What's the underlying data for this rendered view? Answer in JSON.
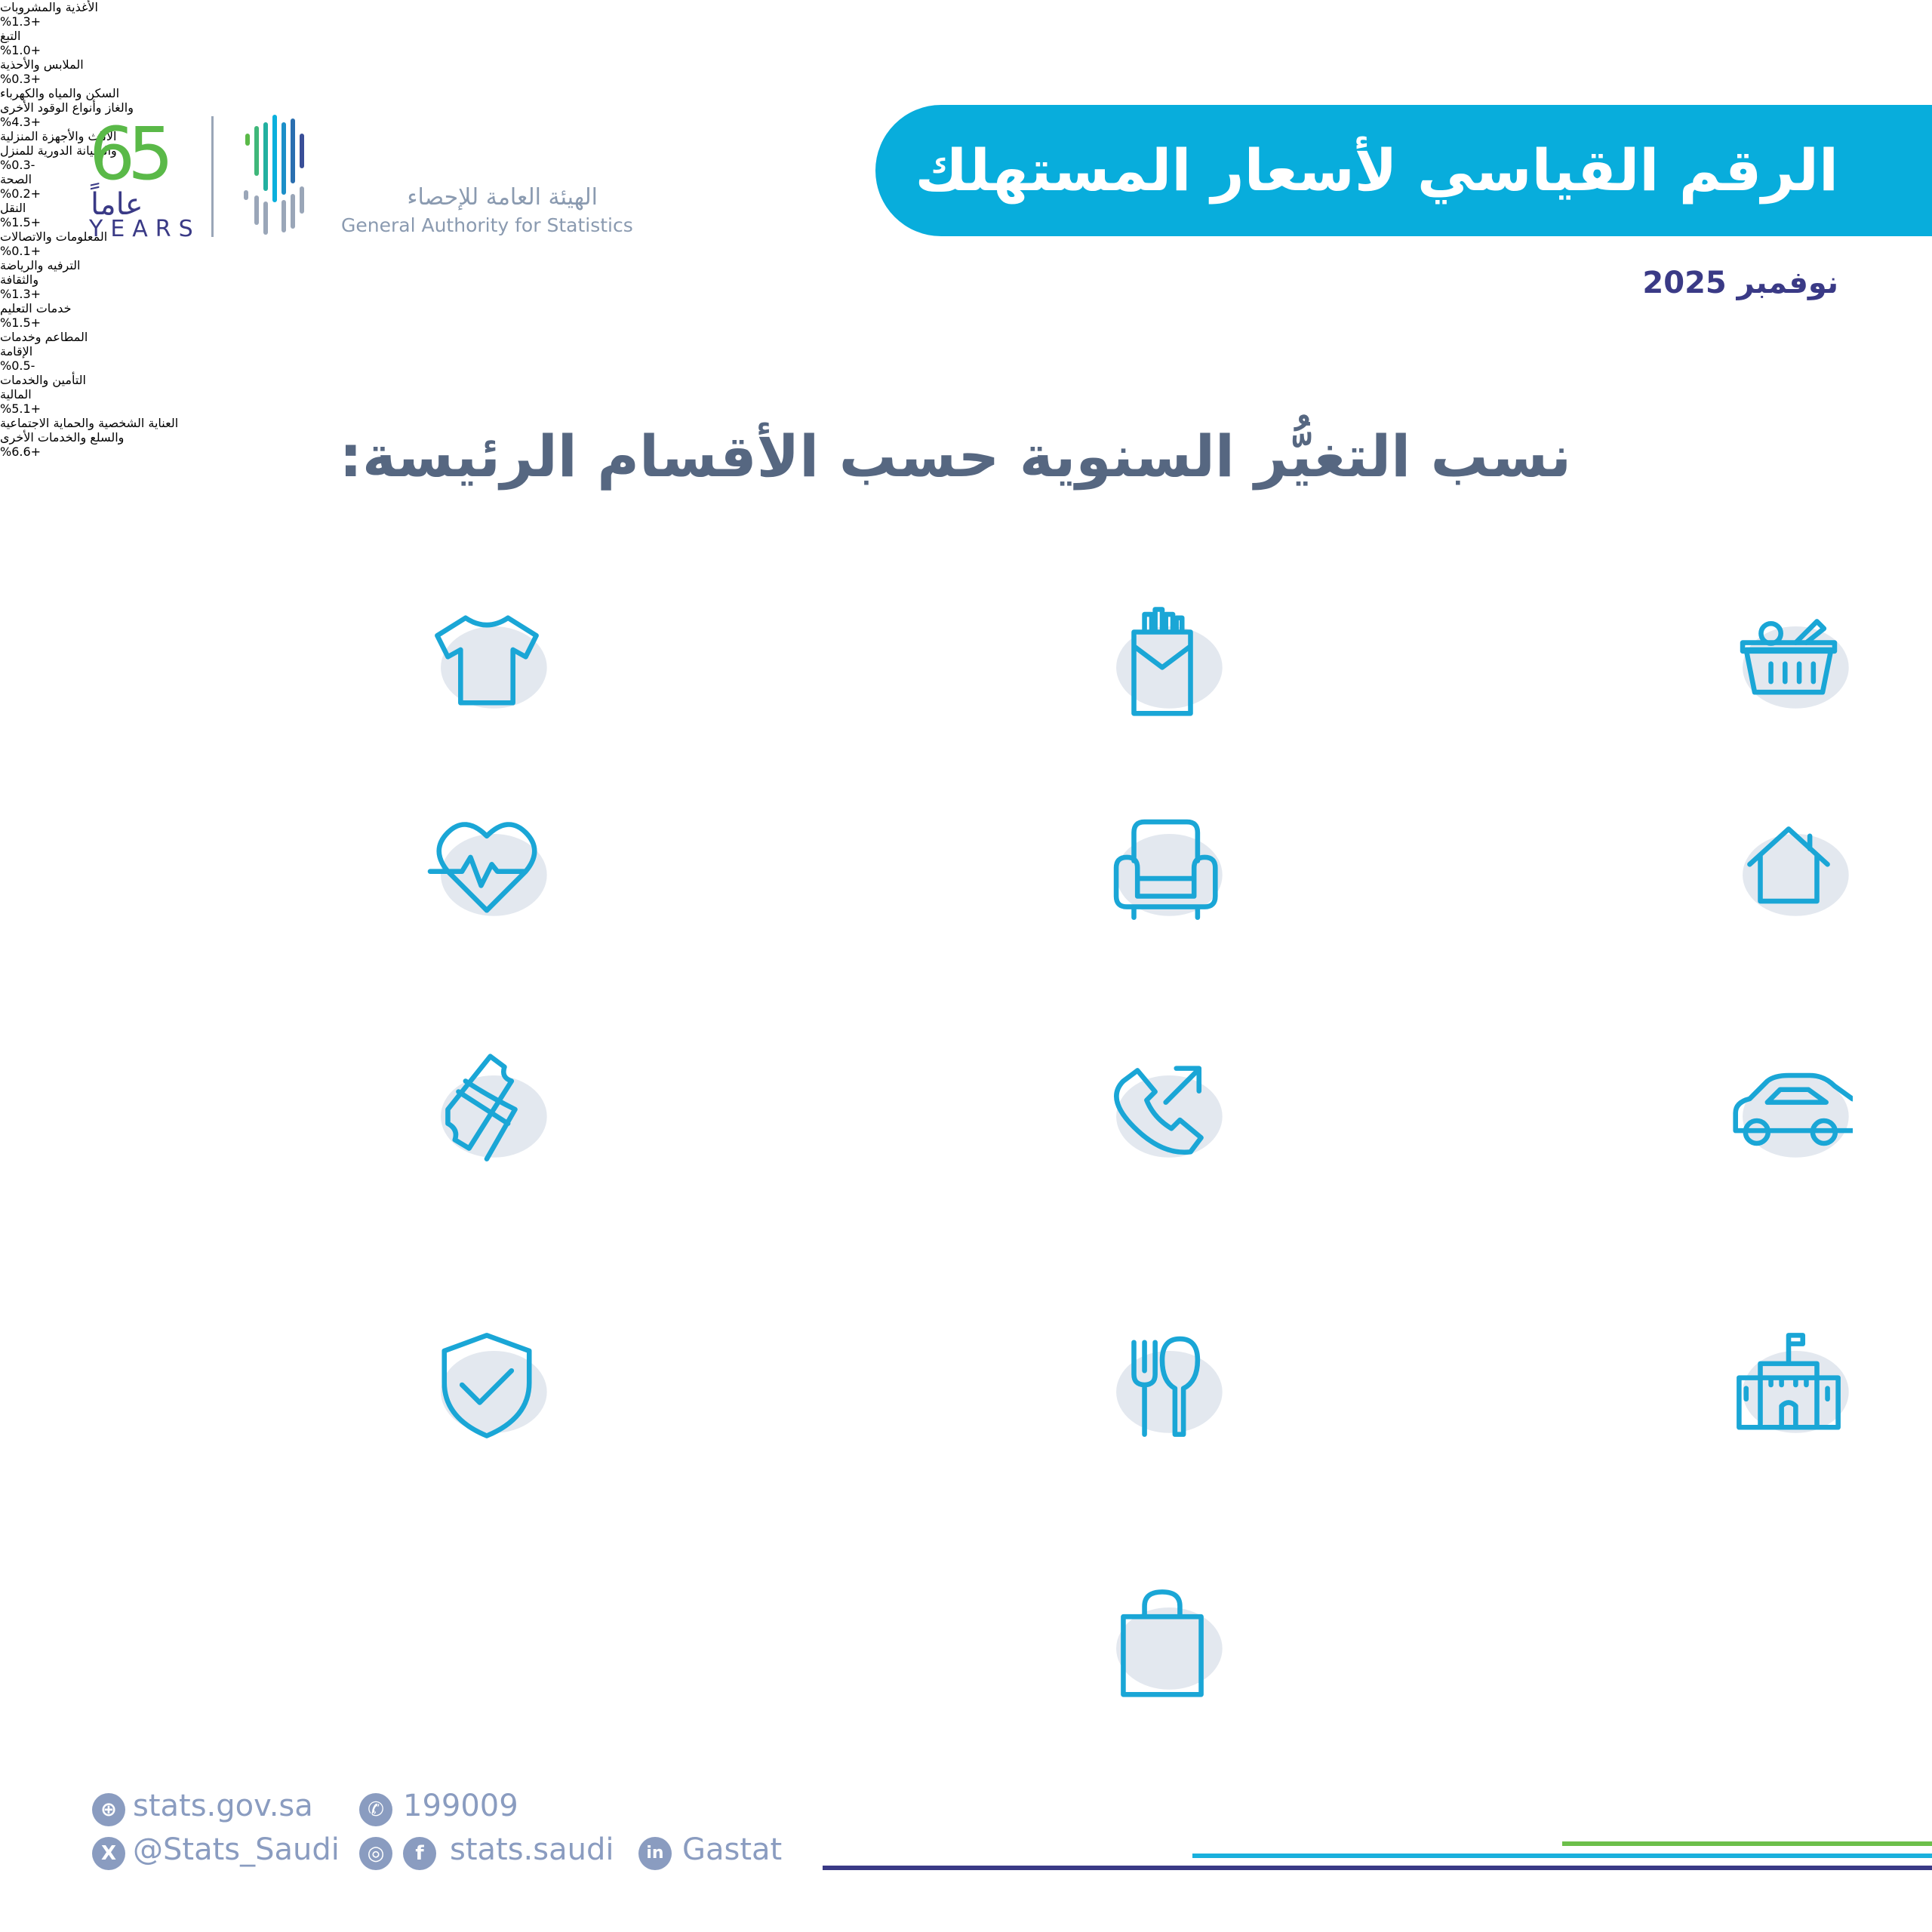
{
  "header": {
    "title": "الرقم القياسي لأسعار المستهلك",
    "date": "نوفمبر 2025"
  },
  "logo": {
    "years_number": "65",
    "years_ar": "عاماً",
    "years_en": "YEARS",
    "org_ar": "الهيئة العامة للإحصاء",
    "org_en": "General Authority for Statistics"
  },
  "subtitle": "نسب التغيُّر السنوية حسب الأقسام الرئيسة:",
  "colors": {
    "banner": "#08addc",
    "value": "#4cc73a",
    "icon": "#1aa6d6",
    "label": "#5b6b84"
  },
  "categories": [
    {
      "label": [
        "الأغذية والمشروبات"
      ],
      "value": "%1.3+",
      "icon": "food-basket-icon"
    },
    {
      "label": [
        "التبغ"
      ],
      "value": "%1.0+",
      "icon": "cigarette-pack-icon"
    },
    {
      "label": [
        "الملابس والأحذية"
      ],
      "value": "%0.3+",
      "icon": "tshirt-icon"
    },
    {
      "label": [
        "السكن والمياه والكهرباء",
        "والغاز وأنواع الوقود الأخرى"
      ],
      "value": "%4.3+",
      "icon": "house-icon"
    },
    {
      "label": [
        "الأثاث والأجهزة المنزلية",
        "والصيانة الدورية للمنزل"
      ],
      "value": "%0.3-",
      "icon": "armchair-icon"
    },
    {
      "label": [
        "الصحة"
      ],
      "value": "%0.2+",
      "icon": "heart-pulse-icon"
    },
    {
      "label": [
        "النقل"
      ],
      "value": "%1.5+",
      "icon": "car-icon"
    },
    {
      "label": [
        "المعلومات والاتصالات"
      ],
      "value": "%0.1+",
      "icon": "phone-call-icon"
    },
    {
      "label": [
        "الترفيه والرياضة",
        "والثقافة"
      ],
      "value": "%1.3+",
      "icon": "ticket-icon"
    },
    {
      "label": [
        "خدمات التعليم"
      ],
      "value": "%1.5+",
      "icon": "school-icon"
    },
    {
      "label": [
        "المطاعم وخدمات",
        "الإقامة"
      ],
      "value": "%0.5-",
      "icon": "fork-spoon-icon"
    },
    {
      "label": [
        "التأمين والخدمات",
        "المالية"
      ],
      "value": "%5.1+",
      "icon": "shield-check-icon"
    },
    {
      "label": [
        "العناية الشخصية والحماية الاجتماعية",
        "والسلع والخدمات الأخرى"
      ],
      "value": "%6.6+",
      "icon": "shopping-bag-icon"
    }
  ],
  "footer": {
    "website": "stats.gov.sa",
    "phone": "199009",
    "twitter": "@Stats_Saudi",
    "social": "stats.saudi",
    "linkedin": "Gastat"
  }
}
